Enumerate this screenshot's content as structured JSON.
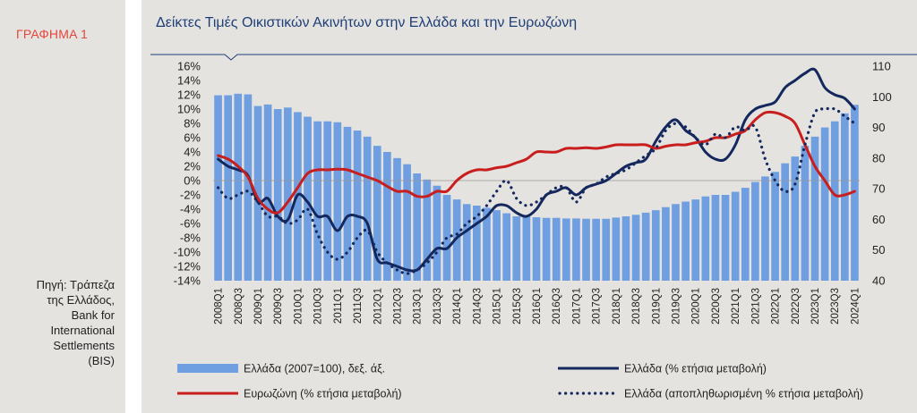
{
  "sidebar": {
    "graph_label": "ΓΡΑΦΗΜΑ 1",
    "source_lines": [
      "Πηγή: Τράπεζα",
      "της Ελλάδος,",
      "Bank for",
      "International",
      "Settlements",
      "(BIS)"
    ]
  },
  "chart_data": {
    "type": "bar+line",
    "title": "Δείκτες Τιμές Οικιστικών Ακινήτων στην Ελλάδα και την Ευρωζώνη",
    "y_left": {
      "lim": [
        -14,
        16
      ],
      "ticks": [
        "16%",
        "14%",
        "12%",
        "10%",
        "8%",
        "6%",
        "4%",
        "2%",
        "0%",
        "-2%",
        "-4%",
        "-6%",
        "-8%",
        "-10%",
        "-12%",
        "-14%"
      ]
    },
    "y_right": {
      "lim": [
        40,
        110
      ],
      "ticks": [
        "110",
        "100",
        "90",
        "80",
        "70",
        "60",
        "50",
        "40"
      ]
    },
    "x_tick_labels": [
      "2008Q1",
      "2008Q3",
      "2009Q1",
      "2009Q3",
      "2010Q1",
      "2010Q3",
      "2011Q1",
      "2011Q3",
      "2012Q1",
      "2012Q3",
      "2013Q1",
      "2013Q3",
      "2014Q1",
      "2014Q3",
      "2015Q1",
      "2015Q3",
      "2016Q1",
      "2016Q3",
      "2017Q1",
      "2017Q3",
      "2018Q1",
      "2018Q3",
      "2019Q1",
      "2019Q3",
      "2020Q1",
      "2020Q3",
      "2021Q1",
      "2021Q3",
      "2022Q1",
      "2022Q3",
      "2023Q1",
      "2023Q3",
      "2024Q1"
    ],
    "x_quarters": [
      "2008Q1",
      "2008Q2",
      "2008Q3",
      "2008Q4",
      "2009Q1",
      "2009Q2",
      "2009Q3",
      "2009Q4",
      "2010Q1",
      "2010Q2",
      "2010Q3",
      "2010Q4",
      "2011Q1",
      "2011Q2",
      "2011Q3",
      "2011Q4",
      "2012Q1",
      "2012Q2",
      "2012Q3",
      "2012Q4",
      "2013Q1",
      "2013Q2",
      "2013Q3",
      "2013Q4",
      "2014Q1",
      "2014Q2",
      "2014Q3",
      "2014Q4",
      "2015Q1",
      "2015Q2",
      "2015Q3",
      "2015Q4",
      "2016Q1",
      "2016Q2",
      "2016Q3",
      "2016Q4",
      "2017Q1",
      "2017Q2",
      "2017Q3",
      "2017Q4",
      "2018Q1",
      "2018Q2",
      "2018Q3",
      "2018Q4",
      "2019Q1",
      "2019Q2",
      "2019Q3",
      "2019Q4",
      "2020Q1",
      "2020Q2",
      "2020Q3",
      "2020Q4",
      "2021Q1",
      "2021Q2",
      "2021Q3",
      "2021Q4",
      "2022Q1",
      "2022Q2",
      "2022Q3",
      "2022Q4",
      "2023Q1",
      "2023Q2",
      "2023Q3",
      "2023Q4",
      "2024Q1"
    ],
    "series": [
      {
        "name": "Ελλάδα (2007=100), δεξ. άξ.",
        "kind": "bar",
        "axis": "right",
        "color": "#6f9fe0",
        "values": [
          100.5,
          100.5,
          101,
          100.8,
          97,
          97.5,
          96,
          96.5,
          95,
          93.5,
          92,
          92,
          91.7,
          90.2,
          89,
          87,
          84,
          82,
          80,
          78,
          75,
          73,
          71,
          68,
          66.5,
          65,
          64.5,
          63.8,
          63,
          62,
          61,
          61,
          60.7,
          60.5,
          60.5,
          60.3,
          60.3,
          60.2,
          60.2,
          60.2,
          60.6,
          61,
          61.5,
          62.2,
          63,
          64,
          65,
          65.8,
          66.5,
          67.5,
          68,
          68,
          69,
          70.3,
          72.2,
          74,
          75.5,
          78.3,
          80.5,
          84,
          87,
          90,
          92,
          94.6,
          97.4
        ]
      },
      {
        "name": "Ελλάδα (% ετήσια μεταβολή)",
        "kind": "line",
        "axis": "left",
        "color": "#14285e",
        "style": "solid",
        "values": [
          3,
          2,
          1.5,
          0.7,
          -3,
          -2.5,
          -5,
          -5.5,
          -2,
          -3,
          -5,
          -5,
          -7,
          -5,
          -5,
          -6,
          -11,
          -11.5,
          -12,
          -12.5,
          -12.5,
          -11,
          -9.5,
          -9.5,
          -8,
          -7,
          -6,
          -5,
          -3.5,
          -3.5,
          -4.5,
          -5,
          -4,
          -2,
          -1.5,
          -1,
          -2,
          -1,
          -0.5,
          0,
          1,
          2,
          2.5,
          3,
          5.5,
          7.5,
          8.5,
          7,
          6,
          4,
          3,
          3,
          5,
          8.5,
          10,
          10.5,
          11,
          13,
          14,
          15,
          15.5,
          13,
          12,
          11.5,
          10
        ]
      },
      {
        "name": "Ευρωζώνη (% ετήσια μεταβολή)",
        "kind": "line",
        "axis": "left",
        "color": "#c81e1e",
        "style": "solid",
        "values": [
          3.5,
          3,
          2,
          0.5,
          -2.5,
          -4,
          -4.5,
          -3,
          -1,
          1,
          1.5,
          1.5,
          1.6,
          1.5,
          1,
          0.5,
          0,
          -0.8,
          -1.5,
          -1.5,
          -2.2,
          -2.2,
          -1.5,
          -1.5,
          0,
          1,
          1.5,
          1.5,
          1.8,
          2,
          2.5,
          3,
          4,
          4,
          4,
          4.5,
          4.5,
          4.6,
          4.5,
          4.7,
          5,
          5,
          5,
          5,
          4.5,
          4.8,
          5,
          5,
          5.3,
          5.5,
          6,
          6,
          6.5,
          7,
          8.5,
          9.5,
          9.5,
          9,
          8,
          5,
          2,
          0,
          -2,
          -2,
          -1.5
        ]
      },
      {
        "name": "Ελλάδα (αποπληθωρισμένη % ετήσια μεταβολή)",
        "kind": "line",
        "axis": "left",
        "color": "#14285e",
        "style": "dotted",
        "values": [
          -1,
          -2.5,
          -2,
          -1.5,
          -3,
          -5,
          -5,
          -6,
          -5.5,
          -4,
          -7.5,
          -10,
          -11,
          -10,
          -8,
          -7,
          -10,
          -11.5,
          -12.5,
          -13,
          -12.5,
          -11.5,
          -10,
          -8,
          -7.5,
          -6,
          -5,
          -3.5,
          -1.5,
          0,
          -2.5,
          -3.5,
          -3,
          -2,
          -1,
          -1,
          -3,
          -1,
          -0.5,
          0.5,
          1,
          1.5,
          2.5,
          3.5,
          4.5,
          7,
          8,
          7.5,
          6,
          5,
          6.5,
          6,
          7.5,
          7,
          7.5,
          3,
          0,
          -1.5,
          -0.5,
          5,
          9.5,
          10,
          10,
          9,
          8
        ]
      }
    ],
    "legend": {
      "placement": "bottom",
      "entries": [
        "Ελλάδα (2007=100), δεξ. άξ.",
        "Ελλάδα (% ετήσια μεταβολή)",
        "Ευρωζώνη (% ετήσια μεταβολή)",
        "Ελλάδα (αποπληθωρισμένη % ετήσια μεταβολή)"
      ]
    }
  }
}
